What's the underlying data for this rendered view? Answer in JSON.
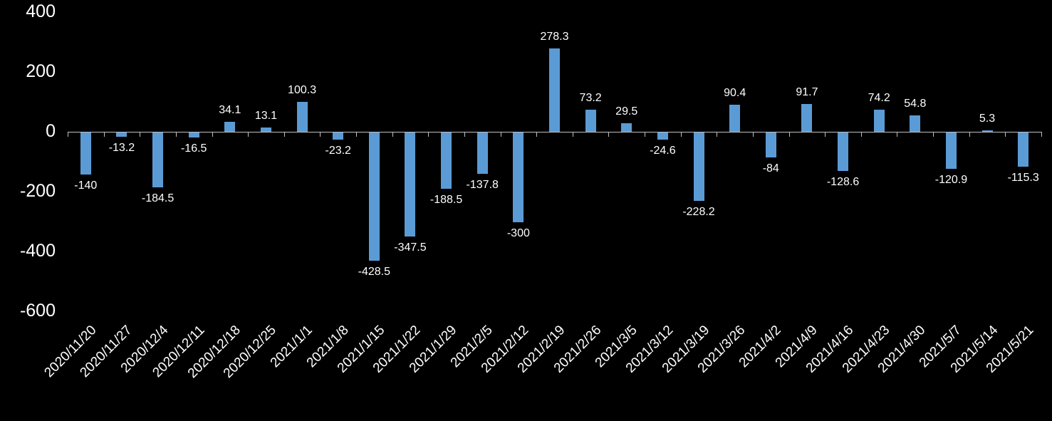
{
  "chart_data": {
    "type": "bar",
    "title": "",
    "xlabel": "",
    "ylabel": "",
    "categories": [
      "2020/11/20",
      "2020/11/27",
      "2020/12/4",
      "2020/12/11",
      "2020/12/18",
      "2020/12/25",
      "2021/1/1",
      "2021/1/8",
      "2021/1/15",
      "2021/1/22",
      "2021/1/29",
      "2021/2/5",
      "2021/2/12",
      "2021/2/19",
      "2021/2/26",
      "2021/3/5",
      "2021/3/12",
      "2021/3/19",
      "2021/3/26",
      "2021/4/2",
      "2021/4/9",
      "2021/4/16",
      "2021/4/23",
      "2021/4/30",
      "2021/5/7",
      "2021/5/14",
      "2021/5/21"
    ],
    "values": [
      -140,
      -13.2,
      -184.5,
      -16.5,
      34.1,
      13.1,
      100.3,
      -23.2,
      -428.5,
      -347.5,
      -188.5,
      -137.8,
      -300,
      278.3,
      73.2,
      29.5,
      -24.6,
      -228.2,
      90.4,
      -84,
      91.7,
      -128.6,
      74.2,
      54.8,
      -120.9,
      5.3,
      -115.3
    ],
    "data_labels_visible": true,
    "ylim": [
      -600,
      400
    ],
    "yticks": [
      400,
      200,
      0,
      -200,
      -400,
      -600
    ],
    "grid": false,
    "legend_position": "none",
    "colors": {
      "bar": "#5B9BD5",
      "background": "#000000",
      "text": "#FFFFFF",
      "axis": "#BFBFBF"
    }
  }
}
